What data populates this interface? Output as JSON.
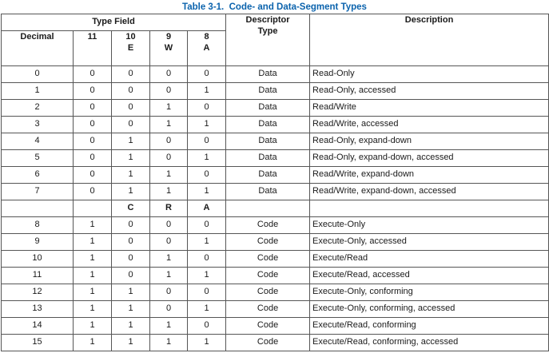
{
  "title": "Table 3-1.  Code- and Data-Segment Types",
  "header": {
    "type_field": "Type Field",
    "descriptor_type_line1": "Descriptor",
    "descriptor_type_line2": "Type",
    "description": "Description",
    "decimal": "Decimal",
    "bit11_num": "11",
    "bit10_num": "10",
    "bit10_flag": "E",
    "bit9_num": "9",
    "bit9_flag": "W",
    "bit8_num": "8",
    "bit8_flag": "A"
  },
  "rows_data": [
    {
      "decimal": "0",
      "b11": "0",
      "b10": "0",
      "b9": "0",
      "b8": "0",
      "type": "Data",
      "description": "Read-Only"
    },
    {
      "decimal": "1",
      "b11": "0",
      "b10": "0",
      "b9": "0",
      "b8": "1",
      "type": "Data",
      "description": "Read-Only, accessed"
    },
    {
      "decimal": "2",
      "b11": "0",
      "b10": "0",
      "b9": "1",
      "b8": "0",
      "type": "Data",
      "description": "Read/Write"
    },
    {
      "decimal": "3",
      "b11": "0",
      "b10": "0",
      "b9": "1",
      "b8": "1",
      "type": "Data",
      "description": "Read/Write, accessed"
    },
    {
      "decimal": "4",
      "b11": "0",
      "b10": "1",
      "b9": "0",
      "b8": "0",
      "type": "Data",
      "description": "Read-Only, expand-down"
    },
    {
      "decimal": "5",
      "b11": "0",
      "b10": "1",
      "b9": "0",
      "b8": "1",
      "type": "Data",
      "description": "Read-Only, expand-down, accessed"
    },
    {
      "decimal": "6",
      "b11": "0",
      "b10": "1",
      "b9": "1",
      "b8": "0",
      "type": "Data",
      "description": "Read/Write, expand-down"
    },
    {
      "decimal": "7",
      "b11": "0",
      "b10": "1",
      "b9": "1",
      "b8": "1",
      "type": "Data",
      "description": "Read/Write, expand-down, accessed"
    }
  ],
  "separator": {
    "c": "C",
    "r": "R",
    "a": "A"
  },
  "rows_code": [
    {
      "decimal": "8",
      "b11": "1",
      "b10": "0",
      "b9": "0",
      "b8": "0",
      "type": "Code",
      "description": "Execute-Only"
    },
    {
      "decimal": "9",
      "b11": "1",
      "b10": "0",
      "b9": "0",
      "b8": "1",
      "type": "Code",
      "description": "Execute-Only, accessed"
    },
    {
      "decimal": "10",
      "b11": "1",
      "b10": "0",
      "b9": "1",
      "b8": "0",
      "type": "Code",
      "description": "Execute/Read"
    },
    {
      "decimal": "11",
      "b11": "1",
      "b10": "0",
      "b9": "1",
      "b8": "1",
      "type": "Code",
      "description": "Execute/Read, accessed"
    },
    {
      "decimal": "12",
      "b11": "1",
      "b10": "1",
      "b9": "0",
      "b8": "0",
      "type": "Code",
      "description": "Execute-Only, conforming"
    },
    {
      "decimal": "13",
      "b11": "1",
      "b10": "1",
      "b9": "0",
      "b8": "1",
      "type": "Code",
      "description": "Execute-Only, conforming, accessed"
    },
    {
      "decimal": "14",
      "b11": "1",
      "b10": "1",
      "b9": "1",
      "b8": "0",
      "type": "Code",
      "description": "Execute/Read, conforming"
    },
    {
      "decimal": "15",
      "b11": "1",
      "b10": "1",
      "b9": "1",
      "b8": "1",
      "type": "Code",
      "description": "Execute/Read, conforming, accessed"
    }
  ]
}
